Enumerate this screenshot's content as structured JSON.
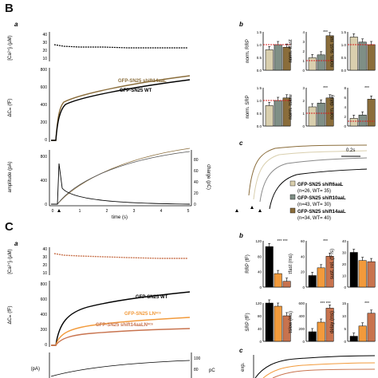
{
  "panels": {
    "B": {
      "letter": "B",
      "a": {
        "sub": "a"
      },
      "b": {
        "sub": "b"
      },
      "c": {
        "sub": "c"
      }
    },
    "C": {
      "letter": "C",
      "a": {
        "sub": "a"
      },
      "b": {
        "sub": "b"
      },
      "c": {
        "sub": "c"
      }
    }
  },
  "labels": {
    "ca_axis": "[Ca²⁺]ᵢ (µM)",
    "cm_axis": "ΔCₘ (fF)",
    "amplitude_axis": "amplitude (pA)",
    "charge_axis": "charge (pC)",
    "time_axis": "time (s)",
    "B_trace_top": "GFP-SN25 shift14aaL",
    "B_trace_bottom": "GFP-SN25 WT",
    "C_trace_wt": "GFP-SN25 WT",
    "C_trace_ln": "GFP-SN25 LNᵛᶜˢ",
    "C_trace_shift": "GFP-SN25 shift14aaLNᵛᶜˢ",
    "scalebar": "0.2s",
    "B_legend": [
      {
        "label": "GFP-SN25 shift6aaL",
        "n": "(n=26, WT= 35)",
        "color": "#d9cfae"
      },
      {
        "label": "GFP-SN25 shift10aaL",
        "n": "(n=43, WT= 30)",
        "color": "#7f8f86"
      },
      {
        "label": "GFP-SN25 shift14aaL",
        "n": "(n=34, WT= 40)",
        "color": "#8a6d3b"
      }
    ],
    "B_bars_y": [
      "norm. RRP",
      "norm. τfast",
      "norm. sust. rel.",
      "norm. SRP",
      "norm. τslow",
      "norm. delay"
    ],
    "C_bars_y": [
      "RRP (fF)",
      "τfast (ms)",
      "sust. rel. (fF/s)",
      "SRP (fF)",
      "τslow (ms)",
      "delay (ms)"
    ],
    "C_c_ylabel": "exp."
  },
  "ticks": {
    "B_ca": [
      "10",
      "20",
      "30",
      "40"
    ],
    "B_cm": [
      "0",
      "200",
      "400",
      "600",
      "800"
    ],
    "B_amp": [
      "0",
      "400",
      "800"
    ],
    "B_charge": [
      "0",
      "20",
      "40",
      "60",
      "80"
    ],
    "B_time": [
      "0",
      "1",
      "2",
      "3",
      "4",
      "5"
    ],
    "B_norm_1": [
      "0.0",
      "0.5",
      "1.0",
      "1.5"
    ],
    "B_norm_2": [
      "0",
      "1",
      "2",
      "3",
      "4"
    ],
    "B_norm_3": [
      "0.0",
      "0.5",
      "1.0",
      "1.5"
    ],
    "B_norm_4": [
      "0.0",
      "0.5",
      "1.0",
      "1.5"
    ],
    "B_norm_5": [
      "0",
      "1",
      "2",
      "3"
    ],
    "B_norm_6": [
      "0",
      "2",
      "4",
      "6",
      "8"
    ],
    "C_ca": [
      "10",
      "20",
      "30",
      "40"
    ],
    "C_cm": [
      "0",
      "200",
      "400",
      "600",
      "800"
    ],
    "C_amp": [
      "(pA)"
    ],
    "C_charge": [
      "80",
      "100"
    ],
    "C_rrp": [
      "0",
      "40",
      "80",
      "120"
    ],
    "C_tfast": [
      "0",
      "20",
      "40",
      "60"
    ],
    "C_sust": [
      "0",
      "10",
      "20",
      "30",
      "40"
    ],
    "C_srp": [
      "0",
      "40",
      "80",
      "120"
    ],
    "C_tslow": [
      "0",
      "200",
      "400",
      "600"
    ],
    "C_delay": [
      "0",
      "5",
      "10",
      "15"
    ]
  },
  "stars": {
    "B1": "***",
    "B2": "***",
    "B3": "***",
    "B4": "***",
    "C1": "*** ***",
    "C2": "***",
    "C3": "***",
    "C4": "*** ***",
    "C5": "***"
  },
  "colors": {
    "wt": "#000000",
    "shift6": "#d9cfae",
    "shift10": "#7f8f86",
    "shift14": "#8a6d3b",
    "ln": "#f29a3b",
    "shiftLN": "#c8734e",
    "redline": "#d62020"
  },
  "chart_data": [
    {
      "type": "bar",
      "panel": "B-b RRP",
      "categories": [
        "shift6aaL",
        "shift10aaL",
        "shift14aaL"
      ],
      "values": [
        0.8,
        1.0,
        0.9
      ],
      "ylim": [
        0,
        1.5
      ]
    },
    {
      "type": "bar",
      "panel": "B-b tau fast",
      "categories": [
        "shift6aaL",
        "shift10aaL",
        "shift14aaL"
      ],
      "values": [
        1.3,
        1.6,
        3.6
      ],
      "ylim": [
        0,
        4
      ]
    },
    {
      "type": "bar",
      "panel": "B-b sust rel",
      "categories": [
        "shift6aaL",
        "shift10aaL",
        "shift14aaL"
      ],
      "values": [
        1.3,
        1.1,
        1.0
      ],
      "ylim": [
        0,
        1.5
      ]
    },
    {
      "type": "bar",
      "panel": "B-b SRP",
      "categories": [
        "shift6aaL",
        "shift10aaL",
        "shift14aaL"
      ],
      "values": [
        0.8,
        1.0,
        1.1
      ],
      "ylim": [
        0,
        1.5
      ]
    },
    {
      "type": "bar",
      "panel": "B-b tau slow",
      "categories": [
        "shift6aaL",
        "shift10aaL",
        "shift14aaL"
      ],
      "values": [
        1.5,
        1.8,
        2.2
      ],
      "ylim": [
        0,
        3
      ]
    },
    {
      "type": "bar",
      "panel": "B-b delay",
      "categories": [
        "shift6aaL",
        "shift10aaL",
        "shift14aaL"
      ],
      "values": [
        1.6,
        2.3,
        5.6
      ],
      "ylim": [
        0,
        8
      ]
    },
    {
      "type": "bar",
      "panel": "C-b RRP",
      "categories": [
        "WT",
        "LN",
        "shift14aaLN"
      ],
      "values": [
        105,
        35,
        15
      ],
      "ylim": [
        0,
        120
      ]
    },
    {
      "type": "bar",
      "panel": "C-b tau fast",
      "categories": [
        "WT",
        "LN",
        "shift14aaLN"
      ],
      "values": [
        15,
        25,
        40
      ],
      "ylim": [
        0,
        60
      ]
    },
    {
      "type": "bar",
      "panel": "C-b sust rel",
      "categories": [
        "WT",
        "LN",
        "shift14aaLN"
      ],
      "values": [
        30,
        23,
        22
      ],
      "ylim": [
        0,
        40
      ]
    },
    {
      "type": "bar",
      "panel": "C-b SRP",
      "categories": [
        "WT",
        "LN",
        "shift14aaLN"
      ],
      "values": [
        120,
        110,
        80
      ],
      "ylim": [
        0,
        120
      ]
    },
    {
      "type": "bar",
      "panel": "C-b tau slow",
      "categories": [
        "WT",
        "LN",
        "shift14aaLN"
      ],
      "values": [
        150,
        300,
        520
      ],
      "ylim": [
        0,
        600
      ]
    },
    {
      "type": "bar",
      "panel": "C-b delay",
      "categories": [
        "WT",
        "LN",
        "shift14aaLN"
      ],
      "values": [
        2,
        6,
        11
      ],
      "ylim": [
        0,
        15
      ]
    }
  ]
}
